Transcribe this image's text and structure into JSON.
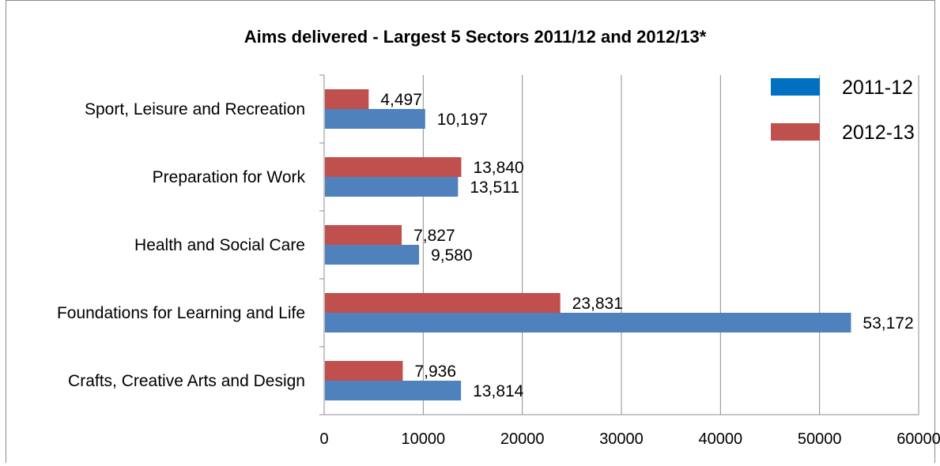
{
  "chart_data": {
    "type": "bar",
    "orientation": "horizontal",
    "title": "Aims delivered - Largest 5 Sectors 2011/12  and 2012/13*",
    "categories": [
      "Sport, Leisure and Recreation",
      "Preparation for Work",
      "Health and Social Care",
      "Foundations for Learning and Life",
      "Crafts, Creative Arts and Design"
    ],
    "series": [
      {
        "name": "2011-12",
        "color": "#4f81bd",
        "values": [
          10197,
          13511,
          9580,
          53172,
          13814
        ],
        "labels": [
          "10,197",
          "13,511",
          "9,580",
          "53,172",
          "13,814"
        ]
      },
      {
        "name": "2012-13",
        "color": "#c0504d",
        "values": [
          4497,
          13840,
          7827,
          23831,
          7936
        ],
        "labels": [
          "4,497",
          "13,840",
          "7,827",
          "23,831",
          "7,936"
        ]
      }
    ],
    "xlim": [
      0,
      60000
    ],
    "xticks": [
      "0",
      "10000",
      "20000",
      "30000",
      "40000",
      "50000",
      "60000"
    ],
    "grid": true,
    "legend": {
      "placement": "top-right",
      "entries": [
        {
          "label": "2011-12",
          "color": "#0070c0"
        },
        {
          "label": "2012-13",
          "color": "#c0504d"
        }
      ]
    },
    "xlabel": "",
    "ylabel": ""
  }
}
